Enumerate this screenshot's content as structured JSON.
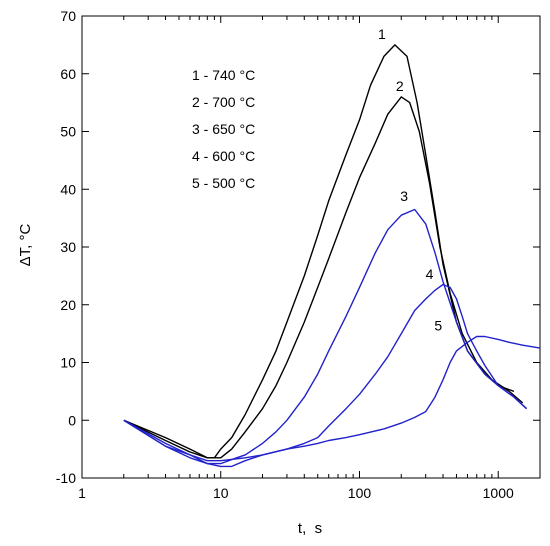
{
  "chart_data": {
    "type": "line",
    "xlabel": "t,  s",
    "ylabel": "ΔT, °C",
    "x_scale": "log",
    "xlim": [
      1,
      2000
    ],
    "ylim": [
      -10,
      70
    ],
    "x_ticks": [
      {
        "value": 1,
        "label": "1"
      },
      {
        "value": 10,
        "label": "10"
      },
      {
        "value": 100,
        "label": "100"
      },
      {
        "value": 1000,
        "label": "1000"
      }
    ],
    "y_ticks": [
      {
        "value": -10,
        "label": "-10"
      },
      {
        "value": 0,
        "label": "0"
      },
      {
        "value": 10,
        "label": "10"
      },
      {
        "value": 20,
        "label": "20"
      },
      {
        "value": 30,
        "label": "30"
      },
      {
        "value": 40,
        "label": "40"
      },
      {
        "value": 50,
        "label": "50"
      },
      {
        "value": 60,
        "label": "60"
      },
      {
        "value": 70,
        "label": "70"
      }
    ],
    "grid": false,
    "legend_position": "top-left",
    "legend": [
      "1 - 740 °C",
      "2 - 700 °C",
      "3 - 650 °C",
      "4 - 600 °C",
      "5 - 500 °C"
    ],
    "series": [
      {
        "label": "1",
        "color": "#000000",
        "label_point": {
          "x": 145,
          "y": 66
        },
        "points": [
          [
            2,
            0
          ],
          [
            4,
            -3
          ],
          [
            6,
            -5
          ],
          [
            8,
            -6.5
          ],
          [
            9,
            -6.5
          ],
          [
            10,
            -5
          ],
          [
            12,
            -3
          ],
          [
            15,
            1
          ],
          [
            20,
            7
          ],
          [
            25,
            12
          ],
          [
            30,
            17
          ],
          [
            40,
            25
          ],
          [
            50,
            32
          ],
          [
            60,
            38
          ],
          [
            80,
            46
          ],
          [
            100,
            52
          ],
          [
            120,
            58
          ],
          [
            150,
            63
          ],
          [
            180,
            65
          ],
          [
            220,
            63
          ],
          [
            260,
            55
          ],
          [
            300,
            46
          ],
          [
            350,
            36
          ],
          [
            400,
            27
          ],
          [
            500,
            17
          ],
          [
            600,
            12
          ],
          [
            800,
            8
          ],
          [
            1000,
            6
          ],
          [
            1300,
            5
          ]
        ]
      },
      {
        "label": "2",
        "color": "#000000",
        "label_point": {
          "x": 195,
          "y": 57
        },
        "points": [
          [
            2,
            0
          ],
          [
            4,
            -3.5
          ],
          [
            6,
            -5.5
          ],
          [
            8,
            -6.5
          ],
          [
            10,
            -6.5
          ],
          [
            12,
            -5
          ],
          [
            15,
            -2
          ],
          [
            20,
            2
          ],
          [
            25,
            6
          ],
          [
            30,
            10
          ],
          [
            40,
            17
          ],
          [
            50,
            23
          ],
          [
            60,
            28
          ],
          [
            80,
            36
          ],
          [
            100,
            42
          ],
          [
            130,
            48
          ],
          [
            160,
            53
          ],
          [
            200,
            56
          ],
          [
            230,
            55
          ],
          [
            270,
            50
          ],
          [
            320,
            41
          ],
          [
            380,
            30
          ],
          [
            450,
            22
          ],
          [
            550,
            15
          ],
          [
            700,
            10
          ],
          [
            900,
            7
          ],
          [
            1200,
            5
          ],
          [
            1500,
            3
          ]
        ]
      },
      {
        "label": "3",
        "color": "#2222cc",
        "label_point": {
          "x": 210,
          "y": 38
        },
        "points": [
          [
            2,
            0
          ],
          [
            4,
            -4
          ],
          [
            6,
            -6
          ],
          [
            8,
            -7.5
          ],
          [
            10,
            -7.5
          ],
          [
            13,
            -6.5
          ],
          [
            15,
            -6
          ],
          [
            20,
            -4
          ],
          [
            25,
            -2
          ],
          [
            30,
            0
          ],
          [
            40,
            4
          ],
          [
            50,
            8
          ],
          [
            60,
            12
          ],
          [
            80,
            18
          ],
          [
            100,
            23
          ],
          [
            130,
            29
          ],
          [
            160,
            33
          ],
          [
            200,
            35.5
          ],
          [
            250,
            36.5
          ],
          [
            300,
            34
          ],
          [
            350,
            29
          ],
          [
            400,
            24
          ],
          [
            500,
            17
          ],
          [
            600,
            12
          ],
          [
            800,
            8
          ],
          [
            1000,
            6
          ],
          [
            1300,
            4
          ],
          [
            1600,
            2
          ]
        ]
      },
      {
        "label": "4",
        "color": "#2222cc",
        "label_point": {
          "x": 320,
          "y": 24.5
        },
        "points": [
          [
            2,
            0
          ],
          [
            4,
            -4.5
          ],
          [
            6,
            -6.5
          ],
          [
            8,
            -7.5
          ],
          [
            10,
            -8
          ],
          [
            12,
            -8
          ],
          [
            15,
            -7
          ],
          [
            20,
            -6
          ],
          [
            30,
            -5
          ],
          [
            40,
            -4
          ],
          [
            50,
            -3
          ],
          [
            60,
            -1
          ],
          [
            80,
            2
          ],
          [
            100,
            4.5
          ],
          [
            130,
            8
          ],
          [
            160,
            11
          ],
          [
            200,
            15
          ],
          [
            250,
            19
          ],
          [
            300,
            21
          ],
          [
            350,
            22.5
          ],
          [
            400,
            23.5
          ],
          [
            450,
            23
          ],
          [
            500,
            21
          ],
          [
            550,
            18
          ],
          [
            600,
            15
          ],
          [
            700,
            12
          ],
          [
            800,
            9.5
          ],
          [
            1000,
            6
          ],
          [
            1300,
            4
          ],
          [
            1600,
            2
          ]
        ]
      },
      {
        "label": "5",
        "color": "#2222cc",
        "label_point": {
          "x": 370,
          "y": 15.5
        },
        "points": [
          [
            2,
            0
          ],
          [
            4,
            -4.5
          ],
          [
            6,
            -6
          ],
          [
            8,
            -7
          ],
          [
            10,
            -7
          ],
          [
            15,
            -6.5
          ],
          [
            20,
            -6
          ],
          [
            30,
            -5
          ],
          [
            40,
            -4.5
          ],
          [
            50,
            -4
          ],
          [
            60,
            -3.5
          ],
          [
            80,
            -3
          ],
          [
            100,
            -2.5
          ],
          [
            150,
            -1.5
          ],
          [
            200,
            -0.5
          ],
          [
            250,
            0.5
          ],
          [
            300,
            1.5
          ],
          [
            350,
            4
          ],
          [
            400,
            7
          ],
          [
            450,
            10
          ],
          [
            500,
            12
          ],
          [
            600,
            13.5
          ],
          [
            700,
            14.5
          ],
          [
            800,
            14.5
          ],
          [
            1000,
            14
          ],
          [
            1200,
            13.5
          ],
          [
            1500,
            13
          ],
          [
            2000,
            12.5
          ]
        ]
      }
    ]
  }
}
